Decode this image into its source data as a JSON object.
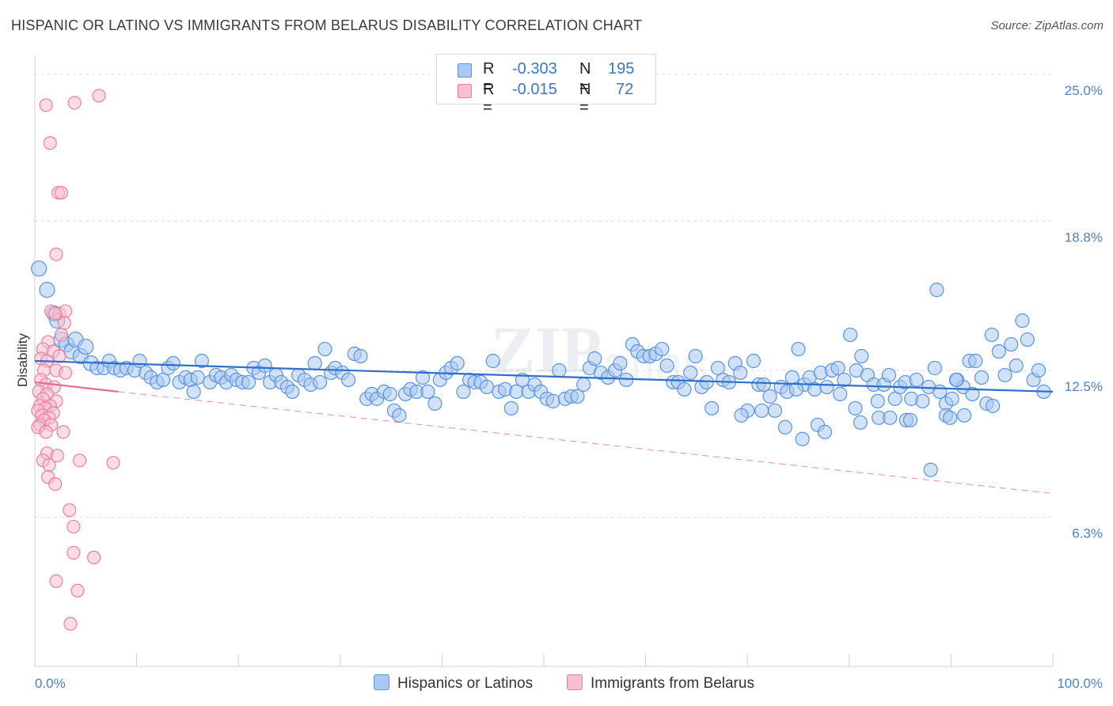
{
  "header": {
    "title": "HISPANIC OR LATINO VS IMMIGRANTS FROM BELARUS DISABILITY CORRELATION CHART",
    "source": "Source: ZipAtlas.com"
  },
  "legend": {
    "rows": [
      {
        "r_label": "R =",
        "r_value": "-0.303",
        "n_label": "N =",
        "n_value": "195"
      },
      {
        "r_label": "R =",
        "r_value": "-0.015",
        "n_label": "N =",
        "n_value": "72"
      }
    ],
    "bottom": [
      "Hispanics or Latinos",
      "Immigrants from Belarus"
    ]
  },
  "colors": {
    "blue_fill": "#a9c8f3",
    "blue_stroke": "#5b93dc",
    "blue_line": "#2f6fcc",
    "pink_fill": "#f7bfd0",
    "pink_stroke": "#e97fa0",
    "pink_line": "#e36a93",
    "grid": "#dcdcdc",
    "axis_label": "#4a7fd0"
  },
  "chart_data": {
    "type": "scatter",
    "title": "HISPANIC OR LATINO VS IMMIGRANTS FROM BELARUS DISABILITY CORRELATION CHART",
    "xlabel": "",
    "ylabel": "Disability",
    "xlim": [
      0,
      100
    ],
    "ylim": [
      0,
      25.8
    ],
    "x_ticks": [
      "0.0%",
      "100.0%"
    ],
    "y_ticks": [
      {
        "value": 6.3,
        "label": "6.3%"
      },
      {
        "value": 12.5,
        "label": "12.5%"
      },
      {
        "value": 18.8,
        "label": "18.8%"
      },
      {
        "value": 25.0,
        "label": "25.0%"
      }
    ],
    "grid": "horizontal dashed",
    "legend_position": "top-center",
    "series": [
      {
        "name": "Hispanics or Latinos",
        "trend": {
          "x": [
            0,
            100
          ],
          "y": [
            12.9,
            11.6
          ],
          "style": "solid"
        },
        "points": [
          [
            0.4,
            16.8
          ],
          [
            1.2,
            15.9
          ],
          [
            1.9,
            14.9
          ],
          [
            2.2,
            14.6
          ],
          [
            2.6,
            13.8
          ],
          [
            3.1,
            13.6
          ],
          [
            3.6,
            13.3
          ],
          [
            4.0,
            13.8
          ],
          [
            4.5,
            13.1
          ],
          [
            5.0,
            13.5
          ],
          [
            5.5,
            12.8
          ],
          [
            6.1,
            12.6
          ],
          [
            6.8,
            12.6
          ],
          [
            7.3,
            12.9
          ],
          [
            7.8,
            12.6
          ],
          [
            8.4,
            12.5
          ],
          [
            9.0,
            12.6
          ],
          [
            9.8,
            12.5
          ],
          [
            10.3,
            12.9
          ],
          [
            10.9,
            12.4
          ],
          [
            11.4,
            12.2
          ],
          [
            12.0,
            12.0
          ],
          [
            12.6,
            12.1
          ],
          [
            13.1,
            12.6
          ],
          [
            13.6,
            12.8
          ],
          [
            14.2,
            12.0
          ],
          [
            14.8,
            12.2
          ],
          [
            15.3,
            12.1
          ],
          [
            15.6,
            11.6
          ],
          [
            16.0,
            12.2
          ],
          [
            16.4,
            12.9
          ],
          [
            17.2,
            12.0
          ],
          [
            17.8,
            12.3
          ],
          [
            18.3,
            12.2
          ],
          [
            18.8,
            12.0
          ],
          [
            19.3,
            12.3
          ],
          [
            19.8,
            12.1
          ],
          [
            20.4,
            12.0
          ],
          [
            21.0,
            12.0
          ],
          [
            21.5,
            12.6
          ],
          [
            22.0,
            12.4
          ],
          [
            22.6,
            12.7
          ],
          [
            23.1,
            12.0
          ],
          [
            23.7,
            12.3
          ],
          [
            24.2,
            12.0
          ],
          [
            24.8,
            11.8
          ],
          [
            25.3,
            11.6
          ],
          [
            25.9,
            12.3
          ],
          [
            26.5,
            12.1
          ],
          [
            27.1,
            11.9
          ],
          [
            27.5,
            12.8
          ],
          [
            28.0,
            12.0
          ],
          [
            28.5,
            13.4
          ],
          [
            29.1,
            12.4
          ],
          [
            29.5,
            12.6
          ],
          [
            30.2,
            12.4
          ],
          [
            30.8,
            12.1
          ],
          [
            31.4,
            13.2
          ],
          [
            32.0,
            13.1
          ],
          [
            32.6,
            11.3
          ],
          [
            33.1,
            11.5
          ],
          [
            33.6,
            11.3
          ],
          [
            34.3,
            11.6
          ],
          [
            34.9,
            11.5
          ],
          [
            35.3,
            10.8
          ],
          [
            35.8,
            10.6
          ],
          [
            36.4,
            11.5
          ],
          [
            36.9,
            11.7
          ],
          [
            37.5,
            11.6
          ],
          [
            38.1,
            12.2
          ],
          [
            38.6,
            11.6
          ],
          [
            39.3,
            11.1
          ],
          [
            39.8,
            12.1
          ],
          [
            40.4,
            12.4
          ],
          [
            40.9,
            12.6
          ],
          [
            41.5,
            12.8
          ],
          [
            42.1,
            11.6
          ],
          [
            42.7,
            12.1
          ],
          [
            43.2,
            12.0
          ],
          [
            43.8,
            12.0
          ],
          [
            44.4,
            11.8
          ],
          [
            45.0,
            12.9
          ],
          [
            45.6,
            11.6
          ],
          [
            46.2,
            11.7
          ],
          [
            46.8,
            10.9
          ],
          [
            47.3,
            11.6
          ],
          [
            47.9,
            12.1
          ],
          [
            48.5,
            11.6
          ],
          [
            49.1,
            11.9
          ],
          [
            49.7,
            11.6
          ],
          [
            50.3,
            11.3
          ],
          [
            50.9,
            11.2
          ],
          [
            51.5,
            12.5
          ],
          [
            52.1,
            11.3
          ],
          [
            52.7,
            11.4
          ],
          [
            53.3,
            11.4
          ],
          [
            53.9,
            11.9
          ],
          [
            54.5,
            12.6
          ],
          [
            55.0,
            13.0
          ],
          [
            55.6,
            12.4
          ],
          [
            56.3,
            12.2
          ],
          [
            57.0,
            12.5
          ],
          [
            57.5,
            12.8
          ],
          [
            58.1,
            12.1
          ],
          [
            58.7,
            13.6
          ],
          [
            59.2,
            13.3
          ],
          [
            59.8,
            13.1
          ],
          [
            60.4,
            13.1
          ],
          [
            61.0,
            13.2
          ],
          [
            61.6,
            13.4
          ],
          [
            62.1,
            12.7
          ],
          [
            62.7,
            12.0
          ],
          [
            63.2,
            12.0
          ],
          [
            63.8,
            11.7
          ],
          [
            64.4,
            12.4
          ],
          [
            64.9,
            13.1
          ],
          [
            65.5,
            11.8
          ],
          [
            66.0,
            12.0
          ],
          [
            66.5,
            10.9
          ],
          [
            67.1,
            12.6
          ],
          [
            67.6,
            12.1
          ],
          [
            68.2,
            12.0
          ],
          [
            68.8,
            12.8
          ],
          [
            69.3,
            12.4
          ],
          [
            70.0,
            10.8
          ],
          [
            70.6,
            12.9
          ],
          [
            71.1,
            11.9
          ],
          [
            71.6,
            11.9
          ],
          [
            72.2,
            11.4
          ],
          [
            72.7,
            10.8
          ],
          [
            73.3,
            11.8
          ],
          [
            73.9,
            11.6
          ],
          [
            74.4,
            12.2
          ],
          [
            75.0,
            13.4
          ],
          [
            75.6,
            11.9
          ],
          [
            76.1,
            12.2
          ],
          [
            76.6,
            11.7
          ],
          [
            77.2,
            12.4
          ],
          [
            77.8,
            11.8
          ],
          [
            78.3,
            12.5
          ],
          [
            78.9,
            12.6
          ],
          [
            79.5,
            12.1
          ],
          [
            80.1,
            14.0
          ],
          [
            80.7,
            12.5
          ],
          [
            81.2,
            13.1
          ],
          [
            81.8,
            12.3
          ],
          [
            82.4,
            11.9
          ],
          [
            82.8,
            11.2
          ],
          [
            83.4,
            11.9
          ],
          [
            83.9,
            12.3
          ],
          [
            84.5,
            11.3
          ],
          [
            85.0,
            11.8
          ],
          [
            85.5,
            12.0
          ],
          [
            86.1,
            11.3
          ],
          [
            86.6,
            12.1
          ],
          [
            87.2,
            11.2
          ],
          [
            87.8,
            11.8
          ],
          [
            88.4,
            12.6
          ],
          [
            88.9,
            11.6
          ],
          [
            89.5,
            11.1
          ],
          [
            90.1,
            11.3
          ],
          [
            90.6,
            12.1
          ],
          [
            91.2,
            11.8
          ],
          [
            91.8,
            12.9
          ],
          [
            92.4,
            12.9
          ],
          [
            93.0,
            12.2
          ],
          [
            93.5,
            11.1
          ],
          [
            94.1,
            11.0
          ],
          [
            94.7,
            13.3
          ],
          [
            95.3,
            12.3
          ],
          [
            95.9,
            13.6
          ],
          [
            96.4,
            12.7
          ],
          [
            97.0,
            14.6
          ],
          [
            97.5,
            13.8
          ],
          [
            98.1,
            12.1
          ],
          [
            98.6,
            12.5
          ],
          [
            99.1,
            11.6
          ],
          [
            88.0,
            8.3
          ],
          [
            88.6,
            15.9
          ],
          [
            75.4,
            9.6
          ],
          [
            76.9,
            10.2
          ],
          [
            77.6,
            9.9
          ],
          [
            80.6,
            10.9
          ],
          [
            81.1,
            10.3
          ],
          [
            82.9,
            10.5
          ],
          [
            84.0,
            10.5
          ],
          [
            85.6,
            10.4
          ],
          [
            89.5,
            10.6
          ],
          [
            89.9,
            10.5
          ],
          [
            90.5,
            12.1
          ],
          [
            69.4,
            10.6
          ],
          [
            71.4,
            10.8
          ],
          [
            73.7,
            10.1
          ],
          [
            74.8,
            11.7
          ],
          [
            79.1,
            11.5
          ],
          [
            86.0,
            10.4
          ],
          [
            91.3,
            10.6
          ],
          [
            92.1,
            11.5
          ],
          [
            94.0,
            14.0
          ]
        ]
      },
      {
        "name": "Immigrants from Belarus",
        "trend": {
          "x": [
            0,
            8.2
          ],
          "y": [
            12.0,
            11.6
          ],
          "style": "solid",
          "extended": {
            "x": [
              8.2,
              100
            ],
            "y": [
              11.6,
              7.3
            ],
            "style": "dashed"
          }
        },
        "points": [
          [
            1.1,
            23.7
          ],
          [
            3.9,
            23.8
          ],
          [
            6.3,
            24.1
          ],
          [
            1.5,
            22.1
          ],
          [
            2.3,
            20.0
          ],
          [
            2.6,
            20.0
          ],
          [
            2.1,
            17.4
          ],
          [
            1.6,
            15.0
          ],
          [
            2.4,
            14.9
          ],
          [
            3.0,
            15.0
          ],
          [
            2.0,
            14.9
          ],
          [
            2.9,
            14.5
          ],
          [
            2.6,
            14.0
          ],
          [
            1.3,
            13.7
          ],
          [
            0.8,
            13.4
          ],
          [
            1.8,
            13.3
          ],
          [
            2.4,
            13.1
          ],
          [
            0.6,
            13.0
          ],
          [
            1.2,
            12.9
          ],
          [
            0.9,
            12.5
          ],
          [
            2.1,
            12.5
          ],
          [
            3.0,
            12.4
          ],
          [
            0.6,
            12.1
          ],
          [
            1.1,
            11.9
          ],
          [
            1.9,
            11.8
          ],
          [
            0.4,
            11.6
          ],
          [
            1.2,
            11.5
          ],
          [
            0.8,
            11.3
          ],
          [
            2.1,
            11.2
          ],
          [
            0.5,
            11.0
          ],
          [
            1.5,
            11.0
          ],
          [
            1.0,
            10.9
          ],
          [
            0.3,
            10.8
          ],
          [
            1.8,
            10.7
          ],
          [
            0.7,
            10.6
          ],
          [
            1.4,
            10.5
          ],
          [
            0.9,
            10.4
          ],
          [
            0.5,
            10.2
          ],
          [
            1.6,
            10.2
          ],
          [
            0.3,
            10.1
          ],
          [
            1.1,
            9.9
          ],
          [
            2.8,
            9.9
          ],
          [
            1.2,
            9.0
          ],
          [
            2.2,
            8.9
          ],
          [
            0.8,
            8.7
          ],
          [
            1.4,
            8.5
          ],
          [
            4.4,
            8.7
          ],
          [
            7.7,
            8.6
          ],
          [
            1.3,
            8.0
          ],
          [
            2.0,
            7.7
          ],
          [
            3.4,
            6.6
          ],
          [
            3.8,
            5.9
          ],
          [
            3.8,
            4.8
          ],
          [
            5.8,
            4.6
          ],
          [
            2.1,
            3.6
          ],
          [
            4.2,
            3.2
          ],
          [
            3.5,
            1.8
          ]
        ]
      }
    ]
  }
}
